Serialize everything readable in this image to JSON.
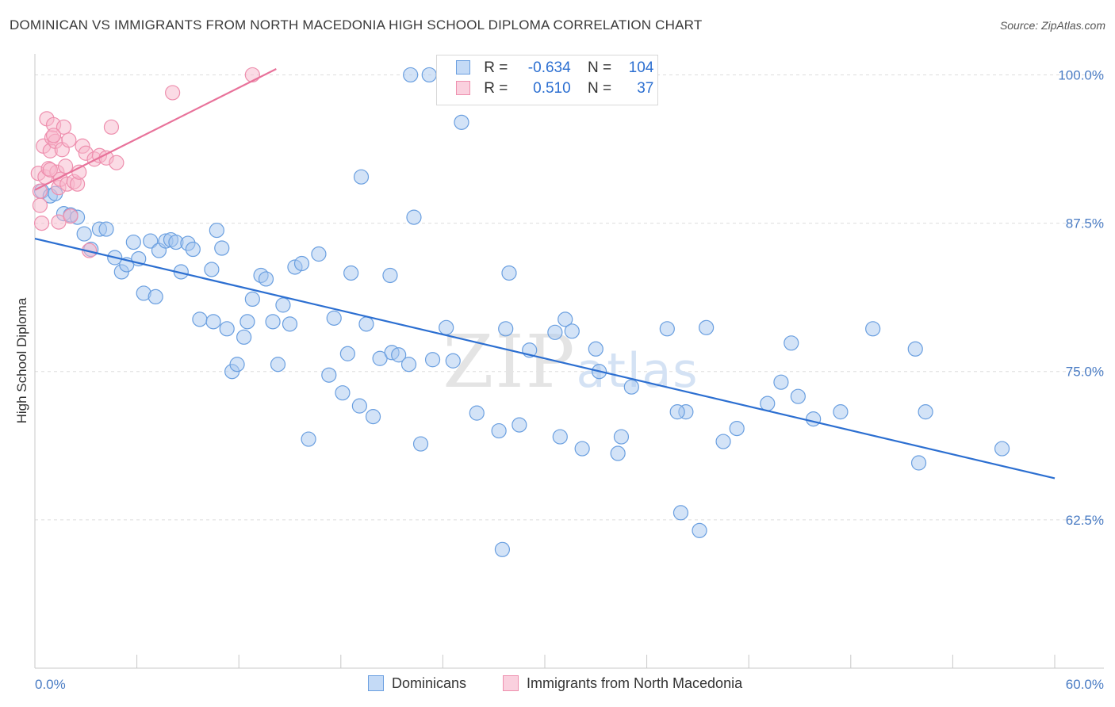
{
  "title": "DOMINICAN VS IMMIGRANTS FROM NORTH MACEDONIA HIGH SCHOOL DIPLOMA CORRELATION CHART",
  "source": "Source: ZipAtlas.com",
  "watermark": "ZIPatlas",
  "colors": {
    "blue_fill": "#a8c8f0",
    "blue_stroke": "#6a9fe0",
    "blue_line": "#2c6fd1",
    "pink_fill": "#f7b8cc",
    "pink_stroke": "#ee8fae",
    "pink_line": "#e8729a",
    "tick_label": "#4a7cc4",
    "grid": "#dddddd"
  },
  "legend": {
    "rows": [
      {
        "r_label": "R =",
        "r_value": "-0.634",
        "n_label": "N =",
        "n_value": "104"
      },
      {
        "r_label": "R =",
        "r_value": "0.510",
        "n_label": "N =",
        "n_value": "37"
      }
    ]
  },
  "bottom_legend": [
    "Dominicans",
    "Immigrants from North Macedonia"
  ],
  "chart_data": {
    "type": "scatter",
    "title": "DOMINICAN VS IMMIGRANTS FROM NORTH MACEDONIA HIGH SCHOOL DIPLOMA CORRELATION CHART",
    "xlabel": "",
    "ylabel": "High School Diploma",
    "xlim": [
      0,
      60
    ],
    "ylim": [
      50,
      101.5
    ],
    "x_tick_labels": [
      "0.0%",
      "60.0%"
    ],
    "y_ticks": [
      62.5,
      75.0,
      87.5,
      100.0
    ],
    "y_tick_labels": [
      "62.5%",
      "75.0%",
      "87.5%",
      "100.0%"
    ],
    "grid": true,
    "series": [
      {
        "name": "Dominicans",
        "color": "#a8c8f0",
        "trend": {
          "x": [
            0,
            60
          ],
          "y": [
            86.2,
            66.0
          ]
        },
        "points": [
          [
            0.4,
            90.2
          ],
          [
            0.9,
            89.8
          ],
          [
            1.2,
            90.0
          ],
          [
            1.7,
            88.3
          ],
          [
            2.1,
            88.2
          ],
          [
            2.5,
            88.0
          ],
          [
            2.9,
            86.6
          ],
          [
            3.3,
            85.3
          ],
          [
            3.8,
            87.0
          ],
          [
            4.2,
            87.0
          ],
          [
            4.7,
            84.6
          ],
          [
            5.1,
            83.4
          ],
          [
            5.4,
            84.0
          ],
          [
            5.8,
            85.9
          ],
          [
            6.1,
            84.5
          ],
          [
            6.4,
            81.6
          ],
          [
            6.8,
            86.0
          ],
          [
            7.1,
            81.3
          ],
          [
            7.3,
            85.2
          ],
          [
            7.7,
            86.0
          ],
          [
            8.0,
            86.1
          ],
          [
            8.3,
            85.9
          ],
          [
            8.6,
            83.4
          ],
          [
            9.0,
            85.8
          ],
          [
            9.3,
            85.3
          ],
          [
            9.7,
            79.4
          ],
          [
            10.4,
            83.6
          ],
          [
            10.5,
            79.2
          ],
          [
            10.7,
            86.9
          ],
          [
            11.0,
            85.4
          ],
          [
            11.3,
            78.6
          ],
          [
            11.6,
            75.0
          ],
          [
            11.9,
            75.6
          ],
          [
            12.3,
            77.9
          ],
          [
            12.5,
            79.2
          ],
          [
            12.8,
            81.1
          ],
          [
            13.3,
            83.1
          ],
          [
            13.6,
            82.8
          ],
          [
            14.0,
            79.2
          ],
          [
            14.3,
            75.6
          ],
          [
            14.6,
            80.6
          ],
          [
            15.0,
            79.0
          ],
          [
            15.3,
            83.8
          ],
          [
            15.7,
            84.1
          ],
          [
            16.1,
            69.3
          ],
          [
            16.7,
            84.9
          ],
          [
            17.3,
            74.7
          ],
          [
            17.6,
            79.5
          ],
          [
            18.1,
            73.2
          ],
          [
            18.4,
            76.5
          ],
          [
            18.6,
            83.3
          ],
          [
            19.1,
            72.1
          ],
          [
            19.5,
            79.0
          ],
          [
            19.9,
            71.2
          ],
          [
            20.3,
            76.1
          ],
          [
            20.9,
            83.1
          ],
          [
            21.0,
            76.6
          ],
          [
            21.4,
            76.4
          ],
          [
            22.0,
            75.6
          ],
          [
            22.3,
            88.0
          ],
          [
            22.7,
            68.9
          ],
          [
            23.4,
            76.0
          ],
          [
            24.2,
            78.7
          ],
          [
            24.6,
            75.9
          ],
          [
            25.1,
            96.0
          ],
          [
            26.0,
            71.5
          ],
          [
            27.3,
            70.0
          ],
          [
            27.5,
            60.0
          ],
          [
            27.9,
            83.3
          ],
          [
            28.5,
            70.5
          ],
          [
            29.1,
            76.8
          ],
          [
            30.6,
            78.3
          ],
          [
            30.9,
            69.5
          ],
          [
            31.2,
            79.4
          ],
          [
            31.6,
            78.4
          ],
          [
            32.2,
            68.5
          ],
          [
            33.0,
            76.9
          ],
          [
            33.2,
            75.0
          ],
          [
            34.3,
            68.1
          ],
          [
            34.5,
            69.5
          ],
          [
            35.1,
            73.7
          ],
          [
            37.2,
            78.6
          ],
          [
            38.0,
            63.1
          ],
          [
            38.3,
            71.6
          ],
          [
            39.1,
            61.6
          ],
          [
            39.5,
            78.7
          ],
          [
            40.5,
            69.1
          ],
          [
            41.3,
            70.2
          ],
          [
            43.1,
            72.3
          ],
          [
            43.9,
            74.1
          ],
          [
            44.5,
            77.4
          ],
          [
            44.9,
            72.9
          ],
          [
            47.4,
            71.6
          ],
          [
            49.3,
            78.6
          ],
          [
            51.8,
            76.9
          ],
          [
            52.0,
            67.3
          ],
          [
            52.4,
            71.6
          ],
          [
            56.9,
            68.5
          ],
          [
            37.8,
            71.6
          ],
          [
            27.7,
            78.6
          ],
          [
            19.2,
            91.4
          ],
          [
            22.1,
            100.0
          ],
          [
            23.2,
            100.0
          ],
          [
            45.8,
            71.0
          ]
        ]
      },
      {
        "name": "Immigrants from North Macedonia",
        "color": "#f7b8cc",
        "trend": {
          "x": [
            0,
            14.2
          ],
          "y": [
            90.3,
            100.5
          ]
        },
        "points": [
          [
            0.2,
            91.7
          ],
          [
            0.3,
            89.0
          ],
          [
            0.4,
            87.5
          ],
          [
            0.5,
            94.0
          ],
          [
            0.6,
            91.4
          ],
          [
            0.7,
            96.3
          ],
          [
            0.8,
            92.1
          ],
          [
            0.9,
            93.6
          ],
          [
            1.0,
            94.7
          ],
          [
            1.1,
            95.8
          ],
          [
            1.2,
            94.4
          ],
          [
            1.3,
            91.8
          ],
          [
            1.4,
            90.5
          ],
          [
            1.4,
            87.6
          ],
          [
            1.5,
            91.2
          ],
          [
            1.6,
            93.7
          ],
          [
            1.7,
            95.6
          ],
          [
            1.8,
            92.3
          ],
          [
            1.9,
            90.8
          ],
          [
            2.0,
            94.5
          ],
          [
            2.1,
            88.1
          ],
          [
            2.3,
            91.0
          ],
          [
            2.5,
            90.8
          ],
          [
            2.8,
            94.0
          ],
          [
            3.0,
            93.4
          ],
          [
            3.2,
            85.2
          ],
          [
            3.5,
            92.9
          ],
          [
            3.8,
            93.2
          ],
          [
            4.2,
            93.0
          ],
          [
            4.5,
            95.6
          ],
          [
            4.8,
            92.6
          ],
          [
            8.1,
            98.5
          ],
          [
            12.8,
            100.0
          ],
          [
            0.9,
            92.0
          ],
          [
            1.1,
            94.9
          ],
          [
            2.6,
            91.8
          ],
          [
            0.3,
            90.2
          ]
        ]
      }
    ]
  }
}
